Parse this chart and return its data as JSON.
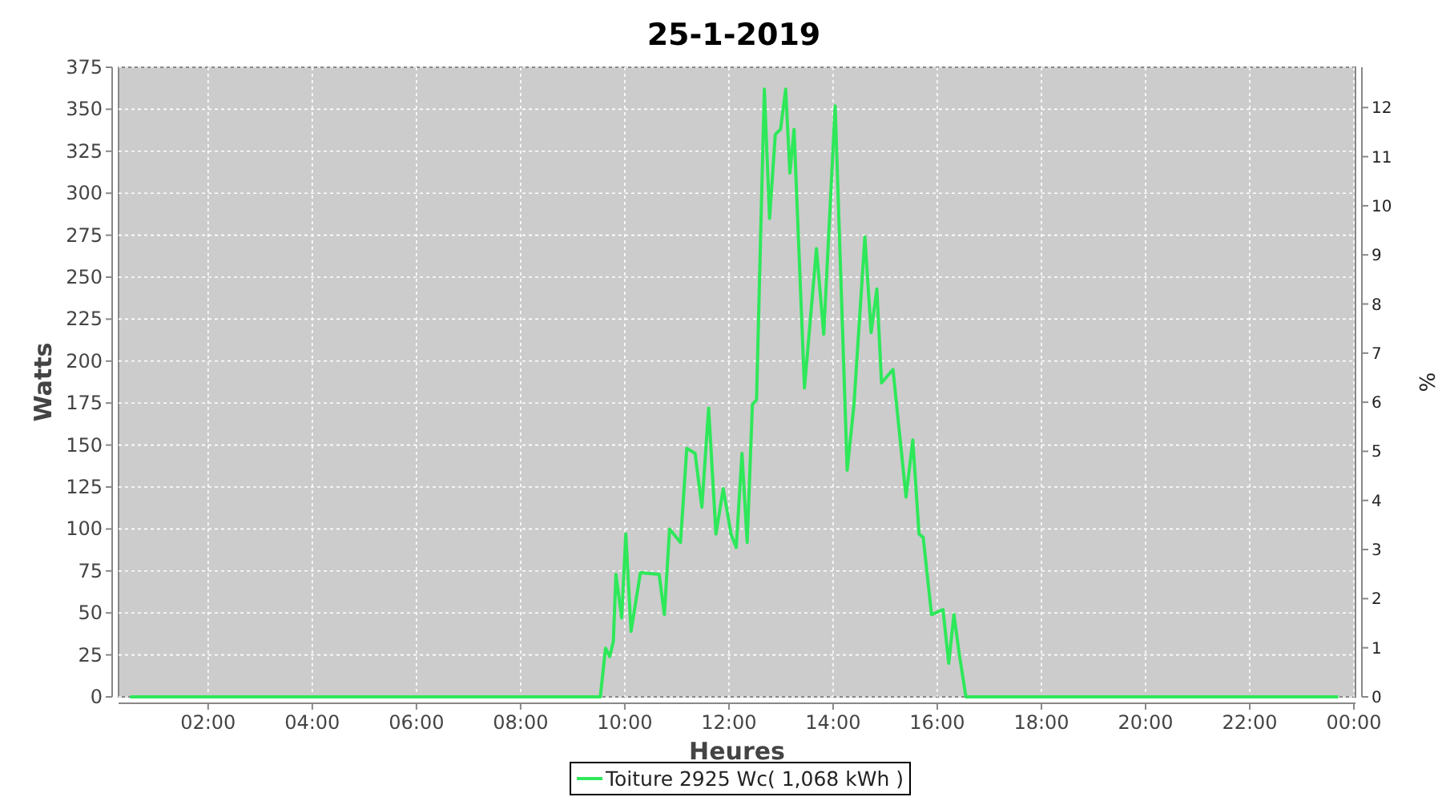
{
  "chart_data": {
    "type": "line",
    "title": "25-1-2019",
    "xlabel": "Heures",
    "ylabel": "Watts",
    "y2label": "%",
    "xlim": [
      0.28,
      24.03
    ],
    "xticks": [
      {
        "value": 2,
        "label": "02:00"
      },
      {
        "value": 4,
        "label": "04:00"
      },
      {
        "value": 6,
        "label": "06:00"
      },
      {
        "value": 8,
        "label": "08:00"
      },
      {
        "value": 10,
        "label": "10:00"
      },
      {
        "value": 12,
        "label": "12:00"
      },
      {
        "value": 14,
        "label": "14:00"
      },
      {
        "value": 16,
        "label": "16:00"
      },
      {
        "value": 18,
        "label": "18:00"
      },
      {
        "value": 20,
        "label": "20:00"
      },
      {
        "value": 22,
        "label": "22:00"
      },
      {
        "value": 24,
        "label": "00:00"
      }
    ],
    "ylim": [
      0,
      375
    ],
    "yticks": [
      0,
      25,
      50,
      75,
      100,
      125,
      150,
      175,
      200,
      225,
      250,
      275,
      300,
      325,
      350,
      375
    ],
    "y2lim": [
      0,
      12.82
    ],
    "y2ticks": [
      0,
      1,
      2,
      3,
      4,
      5,
      6,
      7,
      8,
      9,
      10,
      11,
      12
    ],
    "grid": true,
    "legend": "bottom",
    "series": [
      {
        "name": "Toiture 2925 Wc( 1,068 kWh )",
        "color": "#2ee85a",
        "x": [
          0.5,
          9.53,
          9.63,
          9.71,
          9.78,
          9.83,
          9.94,
          10.02,
          10.12,
          10.3,
          10.66,
          10.76,
          10.86,
          11.07,
          11.19,
          11.35,
          11.48,
          11.61,
          11.75,
          11.89,
          12.04,
          12.14,
          12.25,
          12.35,
          12.45,
          12.53,
          12.61,
          12.68,
          12.78,
          12.89,
          12.99,
          13.09,
          13.17,
          13.25,
          13.45,
          13.68,
          13.82,
          14.04,
          14.27,
          14.4,
          14.61,
          14.73,
          14.84,
          14.93,
          15.15,
          15.4,
          15.53,
          15.65,
          15.73,
          15.89,
          16.11,
          16.22,
          16.32,
          16.42,
          16.55,
          23.7
        ],
        "values": [
          0,
          0,
          29,
          24,
          33,
          73,
          47,
          97,
          39,
          74,
          73,
          49,
          100,
          92,
          148,
          145,
          113,
          172,
          97,
          124,
          97,
          89,
          145,
          92,
          174,
          177,
          277,
          362,
          285,
          335,
          338,
          362,
          312,
          338,
          184,
          267,
          216,
          352,
          135,
          174,
          274,
          217,
          243,
          187,
          195,
          119,
          153,
          97,
          95,
          49,
          52,
          20,
          49,
          26,
          0,
          0
        ]
      }
    ]
  }
}
